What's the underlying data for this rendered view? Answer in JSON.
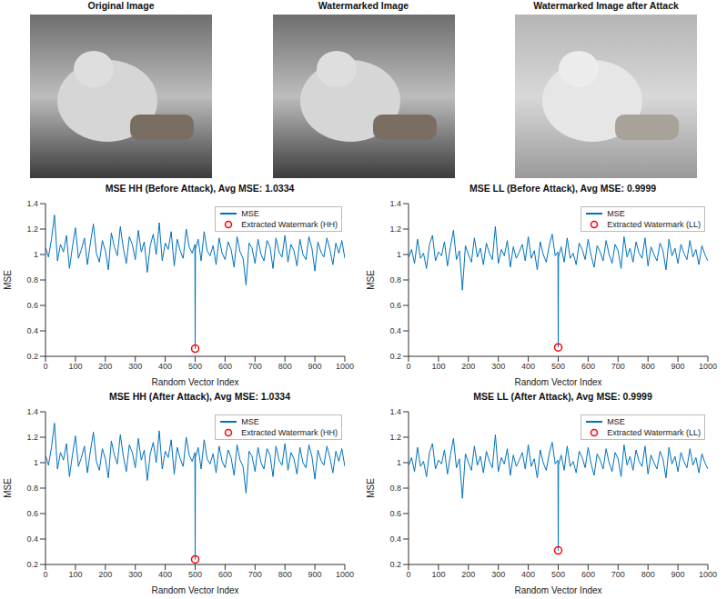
{
  "images": [
    {
      "title": "Original Image"
    },
    {
      "title": "Watermarked Image"
    },
    {
      "title": "Watermarked Image after Attack"
    }
  ],
  "chart_data": [
    {
      "type": "line",
      "title": "MSE HH (Before Attack), Avg MSE: 1.0334",
      "x_label": "Random Vector Index",
      "y_label": "MSE",
      "xlim": [
        0,
        1000
      ],
      "xticks": [
        0,
        100,
        200,
        300,
        400,
        500,
        600,
        700,
        800,
        900,
        1000
      ],
      "ylim": [
        0.2,
        1.4
      ],
      "yticks": [
        0.2,
        0.4,
        0.6,
        0.8,
        1,
        1.2,
        1.4
      ],
      "grid": false,
      "legend": "upper right",
      "series": [
        {
          "name": "MSE",
          "type": "line",
          "color": "#0072bd",
          "line_style": "solid",
          "x": [
            1,
            10,
            20,
            30,
            40,
            50,
            60,
            70,
            80,
            90,
            100,
            110,
            120,
            130,
            140,
            150,
            160,
            170,
            180,
            190,
            200,
            210,
            220,
            230,
            240,
            250,
            260,
            270,
            280,
            290,
            300,
            310,
            320,
            330,
            340,
            350,
            360,
            370,
            380,
            390,
            400,
            410,
            420,
            430,
            440,
            450,
            460,
            470,
            480,
            490,
            499,
            500,
            501,
            510,
            520,
            530,
            540,
            550,
            560,
            570,
            580,
            590,
            600,
            610,
            620,
            630,
            640,
            650,
            660,
            670,
            680,
            690,
            700,
            710,
            720,
            730,
            740,
            750,
            760,
            770,
            780,
            790,
            800,
            810,
            820,
            830,
            840,
            850,
            860,
            870,
            880,
            890,
            900,
            910,
            920,
            930,
            940,
            950,
            960,
            970,
            980,
            990,
            1000
          ],
          "values": [
            1.05,
            0.98,
            1.12,
            1.31,
            0.95,
            1.08,
            1.02,
            1.15,
            0.89,
            1.06,
            1.21,
            0.97,
            1.04,
            1.13,
            0.92,
            1.09,
            1.24,
            1.01,
            0.94,
            1.11,
            1.03,
            0.88,
            1.17,
            1.06,
            0.99,
            1.22,
            1.05,
            0.93,
            1.14,
            1.08,
            0.96,
            1.19,
            1.02,
            1.1,
            0.86,
            1.07,
            1.16,
            1.0,
            1.25,
            0.95,
            1.09,
            1.04,
            1.18,
            0.91,
            1.12,
            1.03,
            0.97,
            1.2,
            1.06,
            1.01,
            1.08,
            0.26,
            1.04,
            1.12,
            0.95,
            1.18,
            1.03,
            0.99,
            1.07,
            0.92,
            1.13,
            1.01,
            0.96,
            1.1,
            1.04,
            0.9,
            1.14,
            1.02,
            0.97,
            0.76,
            1.09,
            1.05,
            0.93,
            1.12,
            1.0,
            0.95,
            1.11,
            1.06,
            0.89,
            1.13,
            1.02,
            0.98,
            1.15,
            0.94,
            1.08,
            1.03,
            0.91,
            1.12,
            1.0,
            0.96,
            1.14,
            1.05,
            0.87,
            1.1,
            1.02,
            0.98,
            1.13,
            1.04,
            0.92,
            1.09,
            1.01,
            1.11,
            0.97
          ]
        },
        {
          "name": "Extracted Watermark (HH)",
          "type": "scatter",
          "color": "#ff0000",
          "marker": "circle",
          "x": [
            500
          ],
          "values": [
            0.26
          ]
        }
      ]
    },
    {
      "type": "line",
      "title": "MSE LL (Before Attack), Avg MSE: 0.9999",
      "x_label": "Random Vector Index",
      "y_label": "MSE",
      "xlim": [
        0,
        1000
      ],
      "xticks": [
        0,
        100,
        200,
        300,
        400,
        500,
        600,
        700,
        800,
        900,
        1000
      ],
      "ylim": [
        0.2,
        1.4
      ],
      "yticks": [
        0.2,
        0.4,
        0.6,
        0.8,
        1,
        1.2,
        1.4
      ],
      "grid": false,
      "legend": "upper right",
      "series": [
        {
          "name": "MSE",
          "type": "line",
          "color": "#0072bd",
          "line_style": "solid",
          "x": [
            1,
            10,
            20,
            30,
            40,
            50,
            60,
            70,
            80,
            90,
            100,
            110,
            120,
            130,
            140,
            150,
            160,
            170,
            180,
            190,
            200,
            210,
            220,
            230,
            240,
            250,
            260,
            270,
            280,
            290,
            300,
            310,
            320,
            330,
            340,
            350,
            360,
            370,
            380,
            390,
            400,
            410,
            420,
            430,
            440,
            450,
            460,
            470,
            480,
            490,
            499,
            500,
            501,
            510,
            520,
            530,
            540,
            550,
            560,
            570,
            580,
            590,
            600,
            610,
            620,
            630,
            640,
            650,
            660,
            670,
            680,
            690,
            700,
            710,
            720,
            730,
            740,
            750,
            760,
            770,
            780,
            790,
            800,
            810,
            820,
            830,
            840,
            850,
            860,
            870,
            880,
            890,
            900,
            910,
            920,
            930,
            940,
            950,
            960,
            970,
            980,
            990,
            1000
          ],
          "values": [
            0.98,
            1.04,
            0.93,
            1.12,
            0.97,
            1.01,
            0.89,
            1.08,
            1.15,
            0.95,
            1.02,
            0.99,
            1.1,
            0.91,
            1.06,
            1.19,
            0.96,
            1.03,
            0.72,
            1.07,
            1.0,
            0.94,
            1.13,
            0.98,
            1.05,
            0.92,
            1.09,
            1.01,
            0.96,
            1.22,
            0.93,
            1.04,
            0.99,
            1.11,
            0.9,
            1.06,
            0.97,
            1.02,
            1.08,
            0.95,
            1.14,
            0.97,
            1.03,
            0.88,
            1.1,
            1.0,
            0.94,
            1.07,
            1.16,
            0.99,
            1.02,
            0.27,
            0.98,
            1.06,
            0.94,
            1.13,
            0.97,
            1.01,
            0.92,
            1.09,
            1.04,
            0.96,
            1.12,
            0.99,
            0.9,
            1.07,
            1.02,
            0.95,
            1.11,
            1.0,
            0.93,
            1.08,
            1.03,
            0.89,
            1.14,
            0.98,
            1.05,
            0.94,
            1.1,
            1.01,
            0.97,
            1.13,
            0.91,
            1.06,
            1.0,
            0.95,
            1.09,
            1.03,
            0.88,
            1.12,
            0.99,
            1.05,
            0.93,
            1.08,
            1.01,
            0.96,
            1.11,
            0.98,
            1.04,
            0.92,
            1.07,
            1.0,
            0.95
          ]
        },
        {
          "name": "Extracted Watermark (LL)",
          "type": "scatter",
          "color": "#ff0000",
          "marker": "circle",
          "x": [
            500
          ],
          "values": [
            0.27
          ]
        }
      ]
    },
    {
      "type": "line",
      "title": "MSE HH (After Attack), Avg MSE: 1.0334",
      "x_label": "Random Vector Index",
      "y_label": "MSE",
      "xlim": [
        0,
        1000
      ],
      "xticks": [
        0,
        100,
        200,
        300,
        400,
        500,
        600,
        700,
        800,
        900,
        1000
      ],
      "ylim": [
        0.2,
        1.4
      ],
      "yticks": [
        0.2,
        0.4,
        0.6,
        0.8,
        1,
        1.2,
        1.4
      ],
      "grid": false,
      "legend": "upper right",
      "series": [
        {
          "name": "MSE",
          "type": "line",
          "color": "#0072bd",
          "line_style": "solid",
          "x": [
            1,
            10,
            20,
            30,
            40,
            50,
            60,
            70,
            80,
            90,
            100,
            110,
            120,
            130,
            140,
            150,
            160,
            170,
            180,
            190,
            200,
            210,
            220,
            230,
            240,
            250,
            260,
            270,
            280,
            290,
            300,
            310,
            320,
            330,
            340,
            350,
            360,
            370,
            380,
            390,
            400,
            410,
            420,
            430,
            440,
            450,
            460,
            470,
            480,
            490,
            499,
            500,
            501,
            510,
            520,
            530,
            540,
            550,
            560,
            570,
            580,
            590,
            600,
            610,
            620,
            630,
            640,
            650,
            660,
            670,
            680,
            690,
            700,
            710,
            720,
            730,
            740,
            750,
            760,
            770,
            780,
            790,
            800,
            810,
            820,
            830,
            840,
            850,
            860,
            870,
            880,
            890,
            900,
            910,
            920,
            930,
            940,
            950,
            960,
            970,
            980,
            990,
            1000
          ],
          "values": [
            1.05,
            0.98,
            1.12,
            1.31,
            0.95,
            1.08,
            1.02,
            1.15,
            0.89,
            1.06,
            1.21,
            0.97,
            1.04,
            1.13,
            0.92,
            1.09,
            1.24,
            1.01,
            0.94,
            1.11,
            1.03,
            0.88,
            1.17,
            1.06,
            0.99,
            1.22,
            1.05,
            0.93,
            1.14,
            1.08,
            0.96,
            1.19,
            1.02,
            1.1,
            0.86,
            1.07,
            1.16,
            1.0,
            1.25,
            0.95,
            1.09,
            1.04,
            1.18,
            0.91,
            1.12,
            1.03,
            0.97,
            1.2,
            1.06,
            1.01,
            1.08,
            0.24,
            1.04,
            1.12,
            0.95,
            1.18,
            1.03,
            0.99,
            1.07,
            0.92,
            1.13,
            1.01,
            0.96,
            1.1,
            1.04,
            0.9,
            1.14,
            1.02,
            0.97,
            0.76,
            1.09,
            1.05,
            0.93,
            1.12,
            1.0,
            0.95,
            1.11,
            1.06,
            0.89,
            1.13,
            1.02,
            0.98,
            1.15,
            0.94,
            1.08,
            1.03,
            0.91,
            1.12,
            1.0,
            0.96,
            1.14,
            1.05,
            0.87,
            1.1,
            1.02,
            0.98,
            1.13,
            1.04,
            0.92,
            1.09,
            1.01,
            1.11,
            0.97
          ]
        },
        {
          "name": "Extracted Watermark (HH)",
          "type": "scatter",
          "color": "#ff0000",
          "marker": "circle",
          "x": [
            500
          ],
          "values": [
            0.24
          ]
        }
      ]
    },
    {
      "type": "line",
      "title": "MSE LL (After Attack), Avg MSE: 0.9999",
      "x_label": "Random Vector Index",
      "y_label": "MSE",
      "xlim": [
        0,
        1000
      ],
      "xticks": [
        0,
        100,
        200,
        300,
        400,
        500,
        600,
        700,
        800,
        900,
        1000
      ],
      "ylim": [
        0.2,
        1.4
      ],
      "yticks": [
        0.2,
        0.4,
        0.6,
        0.8,
        1,
        1.2,
        1.4
      ],
      "grid": false,
      "legend": "upper right",
      "series": [
        {
          "name": "MSE",
          "type": "line",
          "color": "#0072bd",
          "line_style": "solid",
          "x": [
            1,
            10,
            20,
            30,
            40,
            50,
            60,
            70,
            80,
            90,
            100,
            110,
            120,
            130,
            140,
            150,
            160,
            170,
            180,
            190,
            200,
            210,
            220,
            230,
            240,
            250,
            260,
            270,
            280,
            290,
            300,
            310,
            320,
            330,
            340,
            350,
            360,
            370,
            380,
            390,
            400,
            410,
            420,
            430,
            440,
            450,
            460,
            470,
            480,
            490,
            499,
            500,
            501,
            510,
            520,
            530,
            540,
            550,
            560,
            570,
            580,
            590,
            600,
            610,
            620,
            630,
            640,
            650,
            660,
            670,
            680,
            690,
            700,
            710,
            720,
            730,
            740,
            750,
            760,
            770,
            780,
            790,
            800,
            810,
            820,
            830,
            840,
            850,
            860,
            870,
            880,
            890,
            900,
            910,
            920,
            930,
            940,
            950,
            960,
            970,
            980,
            990,
            1000
          ],
          "values": [
            0.98,
            1.04,
            0.93,
            1.12,
            0.97,
            1.01,
            0.89,
            1.08,
            1.15,
            0.95,
            1.02,
            0.99,
            1.1,
            0.91,
            1.06,
            1.19,
            0.96,
            1.03,
            0.72,
            1.07,
            1.0,
            0.94,
            1.13,
            0.98,
            1.05,
            0.92,
            1.09,
            1.01,
            0.96,
            1.22,
            0.93,
            1.04,
            0.99,
            1.11,
            0.9,
            1.06,
            0.97,
            1.02,
            1.08,
            0.95,
            1.14,
            0.97,
            1.03,
            0.88,
            1.1,
            1.0,
            0.94,
            1.07,
            1.16,
            0.99,
            1.02,
            0.31,
            0.98,
            1.06,
            0.94,
            1.13,
            0.97,
            1.01,
            0.92,
            1.09,
            1.04,
            0.96,
            1.12,
            0.99,
            0.9,
            1.07,
            1.02,
            0.95,
            1.11,
            1.0,
            0.93,
            1.08,
            1.03,
            0.89,
            1.14,
            0.98,
            1.05,
            0.94,
            1.1,
            1.01,
            0.97,
            1.13,
            0.91,
            1.06,
            1.0,
            0.95,
            1.09,
            1.03,
            0.88,
            1.12,
            0.99,
            1.05,
            0.93,
            1.08,
            1.01,
            0.96,
            1.11,
            0.98,
            1.04,
            0.92,
            1.07,
            1.0,
            0.95
          ]
        },
        {
          "name": "Extracted Watermark (LL)",
          "type": "scatter",
          "color": "#ff0000",
          "marker": "circle",
          "x": [
            500
          ],
          "values": [
            0.31
          ]
        }
      ]
    }
  ]
}
